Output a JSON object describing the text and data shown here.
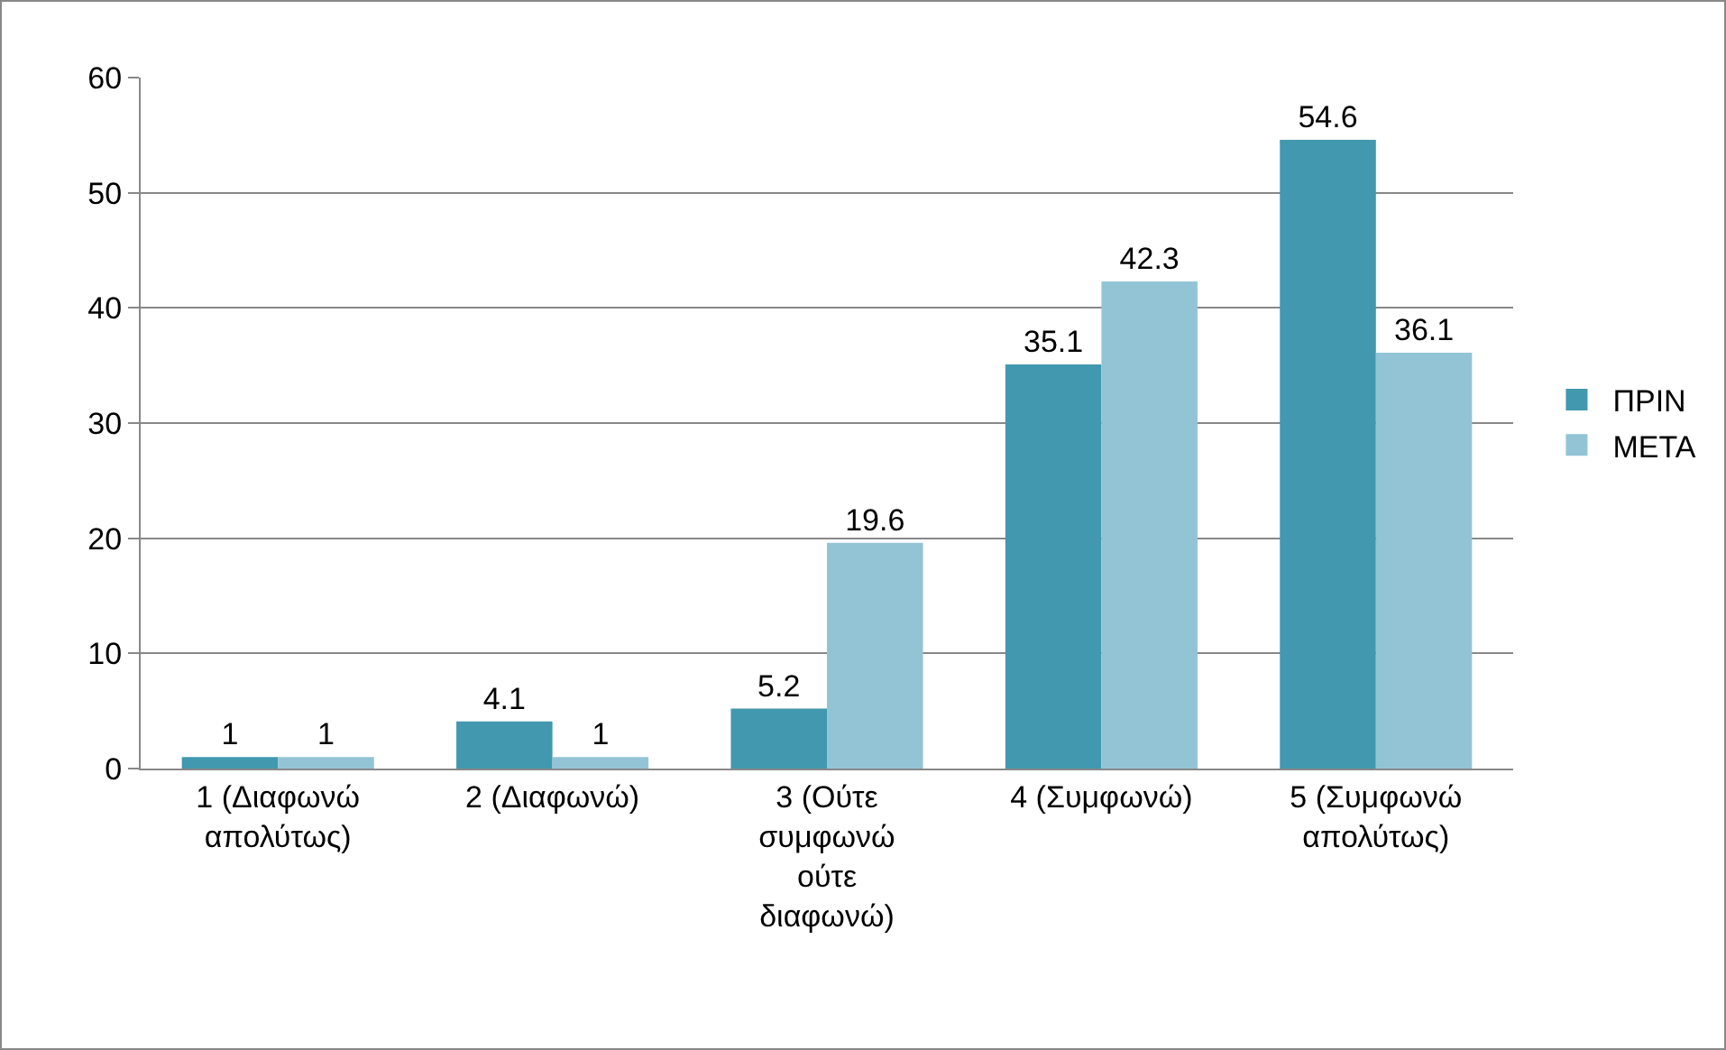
{
  "chart_data": {
    "type": "bar",
    "categories": [
      "1 (Διαφωνώ απολύτως)",
      "2 (Διαφωνώ)",
      "3 (Ούτε συμφωνώ ούτε διαφωνώ)",
      "4 (Συμφωνώ)",
      "5 (Συμφωνώ απολύτως)"
    ],
    "series": [
      {
        "name": "ΠΡΙΝ",
        "color": "#4198af",
        "values": [
          1,
          4.1,
          5.2,
          35.1,
          54.6
        ]
      },
      {
        "name": "ΜΕΤΑ",
        "color": "#93c4d6",
        "values": [
          1,
          1,
          19.6,
          42.3,
          36.1
        ]
      }
    ],
    "ylim": [
      0,
      60
    ],
    "yticks": [
      0,
      10,
      20,
      30,
      40,
      50,
      60
    ],
    "grid": "y",
    "legend": "right",
    "data_labels": true
  }
}
